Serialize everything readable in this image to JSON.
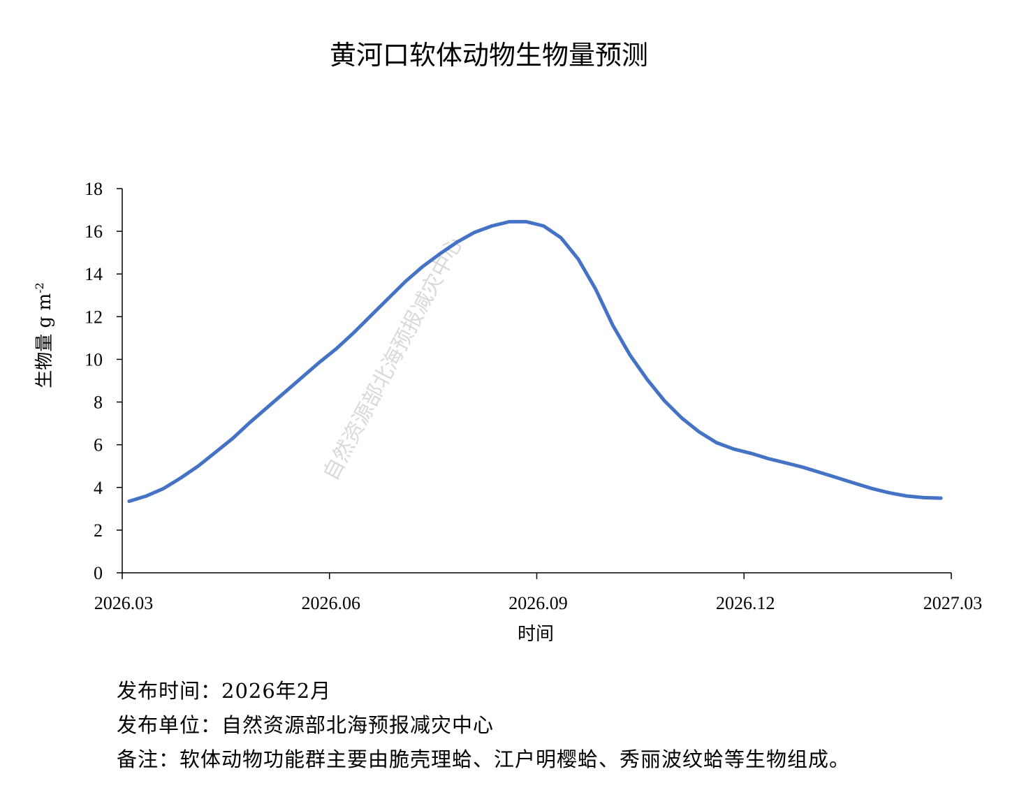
{
  "chart_data": {
    "type": "line",
    "title": "黄河口软体动物生物量预测",
    "xlabel": "时间",
    "ylabel_main": "生物量 g m",
    "ylabel_sup": "-2",
    "x_tick_labels": [
      "2026.03",
      "2026.06",
      "2026.09",
      "2026.12",
      "2027.03"
    ],
    "y_ticks": [
      0,
      2,
      4,
      6,
      8,
      10,
      12,
      14,
      16,
      18
    ],
    "ylim": [
      0,
      18
    ],
    "xlim_months": [
      0,
      12
    ],
    "grid": false,
    "line_color": "#4472C4",
    "series": [
      {
        "x": [
          0.1,
          0.35,
          0.6,
          0.85,
          1.1,
          1.35,
          1.6,
          1.85,
          2.1,
          2.35,
          2.6,
          2.85,
          3.1,
          3.35,
          3.6,
          3.85,
          4.1,
          4.35,
          4.6,
          4.85,
          5.1,
          5.35,
          5.6,
          5.85,
          6.1,
          6.35,
          6.6,
          6.85,
          7.1,
          7.35,
          7.6,
          7.85,
          8.1,
          8.35,
          8.6,
          8.85,
          9.1,
          9.35,
          9.6,
          9.85,
          10.1,
          10.35,
          10.6,
          10.85,
          11.1,
          11.35,
          11.6,
          11.85
        ],
        "values": [
          3.35,
          3.6,
          3.95,
          4.45,
          5.0,
          5.65,
          6.3,
          7.05,
          7.75,
          8.45,
          9.15,
          9.85,
          10.5,
          11.25,
          12.05,
          12.85,
          13.65,
          14.35,
          14.95,
          15.5,
          15.95,
          16.25,
          16.45,
          16.45,
          16.25,
          15.7,
          14.7,
          13.3,
          11.6,
          10.2,
          9.05,
          8.05,
          7.25,
          6.6,
          6.1,
          5.8,
          5.6,
          5.35,
          5.15,
          4.95,
          4.7,
          4.45,
          4.2,
          3.95,
          3.75,
          3.6,
          3.52,
          3.5
        ]
      }
    ]
  },
  "watermark": "自然资源部北海预报减灾中心",
  "notes": {
    "release_time": "发布时间：2026年2月",
    "release_unit": "发布单位：自然资源部北海预报减灾中心",
    "remark": "备注：软体动物功能群主要由脆壳理蛤、江户明樱蛤、秀丽波纹蛤等生物组成。"
  }
}
